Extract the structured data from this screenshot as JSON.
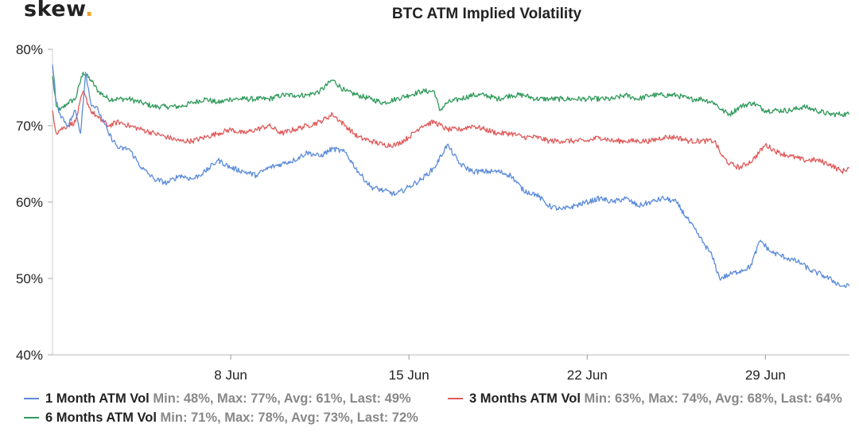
{
  "brand": {
    "name": "skew",
    "dot": "."
  },
  "chart_data": {
    "type": "line",
    "title": "BTC ATM Implied Volatility",
    "xlabel": "",
    "ylabel": "",
    "ylim": [
      40,
      80
    ],
    "xlim": [
      0,
      31.3
    ],
    "y_ticks": [
      40,
      50,
      60,
      70,
      80
    ],
    "y_tick_labels": [
      "40%",
      "50%",
      "60%",
      "70%",
      "80%"
    ],
    "x_ticks": [
      7,
      14,
      21,
      28
    ],
    "x_tick_labels": [
      "8 Jun",
      "15 Jun",
      "22 Jun",
      "29 Jun"
    ],
    "x_unit": "days since 1 Jun",
    "grid": false,
    "legend_position": "bottom",
    "series": [
      {
        "name": "1 Month ATM Vol",
        "color": "#5b8bd9",
        "stats": "Min: 48%, Max: 77%, Avg: 61%, Last: 49%",
        "x": [
          0,
          0.15,
          0.3,
          0.6,
          0.9,
          1.1,
          1.3,
          1.5,
          1.8,
          2.2,
          2.6,
          3.0,
          3.5,
          4.0,
          4.5,
          5.0,
          5.5,
          6.0,
          6.5,
          7.0,
          7.5,
          8.0,
          8.5,
          9.0,
          9.5,
          10.0,
          10.5,
          11.0,
          11.5,
          12.0,
          12.5,
          13.0,
          13.5,
          14.0,
          14.5,
          15.0,
          15.5,
          16.0,
          16.5,
          17.0,
          17.5,
          18.0,
          18.5,
          19.0,
          19.5,
          20.0,
          20.5,
          21.0,
          21.5,
          22.0,
          22.5,
          23.0,
          23.5,
          24.0,
          24.5,
          25.0,
          25.3,
          25.6,
          25.9,
          26.2,
          26.6,
          27.0,
          27.4,
          27.8,
          28.2,
          28.6,
          29.0,
          29.4,
          29.8,
          30.2,
          30.6,
          31.0,
          31.3
        ],
        "values": [
          78.0,
          73.0,
          71.5,
          70.0,
          72.0,
          69.0,
          77.0,
          73.0,
          72.0,
          69.0,
          67.0,
          67.0,
          64.5,
          63.0,
          62.5,
          63.5,
          63.0,
          64.0,
          65.5,
          64.5,
          64.0,
          63.5,
          64.5,
          65.0,
          65.5,
          66.5,
          66.0,
          67.0,
          66.5,
          64.0,
          62.0,
          61.5,
          61.0,
          62.0,
          63.0,
          64.5,
          67.5,
          65.0,
          64.0,
          64.0,
          64.0,
          63.5,
          61.5,
          61.0,
          59.5,
          59.0,
          59.5,
          60.0,
          60.5,
          60.0,
          60.5,
          59.5,
          60.0,
          60.5,
          60.0,
          57.5,
          56.0,
          54.5,
          53.0,
          50.0,
          50.5,
          51.0,
          51.5,
          55.0,
          53.5,
          53.0,
          52.5,
          52.0,
          51.0,
          50.5,
          49.8,
          49.0,
          49.0
        ]
      },
      {
        "name": "3 Months ATM Vol",
        "color": "#e05a5a",
        "stats": "Min: 63%, Max: 74%, Avg: 68%, Last: 64%",
        "x": [
          0,
          0.15,
          0.3,
          0.6,
          0.9,
          1.2,
          1.5,
          1.8,
          2.2,
          2.6,
          3.0,
          3.5,
          4.0,
          4.5,
          5.0,
          5.5,
          6.0,
          6.5,
          7.0,
          7.5,
          8.0,
          8.5,
          9.0,
          9.5,
          10.0,
          10.5,
          11.0,
          11.5,
          12.0,
          12.5,
          13.0,
          13.5,
          14.0,
          14.5,
          15.0,
          15.5,
          16.0,
          16.5,
          17.0,
          17.5,
          18.0,
          18.5,
          19.0,
          19.5,
          20.0,
          20.5,
          21.0,
          21.5,
          22.0,
          22.5,
          23.0,
          23.5,
          24.0,
          24.5,
          25.0,
          25.5,
          26.0,
          26.3,
          26.6,
          27.0,
          27.5,
          28.0,
          28.5,
          29.0,
          29.5,
          30.0,
          30.5,
          31.0,
          31.3
        ],
        "values": [
          72.0,
          69.0,
          69.5,
          70.0,
          70.5,
          74.5,
          72.0,
          71.0,
          70.0,
          70.5,
          70.0,
          69.5,
          69.0,
          68.5,
          68.0,
          68.0,
          68.5,
          69.0,
          69.5,
          69.0,
          69.5,
          70.0,
          69.0,
          69.5,
          70.0,
          70.5,
          71.5,
          70.0,
          68.5,
          68.0,
          67.5,
          67.5,
          68.5,
          70.0,
          70.5,
          69.5,
          69.5,
          70.0,
          69.5,
          69.0,
          69.0,
          68.5,
          68.5,
          68.0,
          68.0,
          68.0,
          68.0,
          68.5,
          68.0,
          68.0,
          68.0,
          68.0,
          68.5,
          68.5,
          68.0,
          68.0,
          68.0,
          66.0,
          65.0,
          64.5,
          65.5,
          67.5,
          66.5,
          66.0,
          65.5,
          65.5,
          65.0,
          64.0,
          64.5
        ]
      },
      {
        "name": "6 Months ATM Vol",
        "color": "#2f9a5a",
        "stats": "Min: 71%, Max: 78%, Avg: 73%, Last: 72%",
        "x": [
          0,
          0.15,
          0.3,
          0.6,
          0.9,
          1.2,
          1.5,
          1.8,
          2.2,
          2.6,
          3.0,
          3.5,
          4.0,
          4.5,
          5.0,
          5.5,
          6.0,
          6.5,
          7.0,
          7.5,
          8.0,
          8.5,
          9.0,
          9.5,
          10.0,
          10.5,
          11.0,
          11.5,
          12.0,
          12.5,
          13.0,
          13.5,
          14.0,
          14.5,
          15.0,
          15.2,
          15.5,
          16.0,
          16.5,
          17.0,
          17.5,
          18.0,
          18.5,
          19.0,
          19.5,
          20.0,
          20.5,
          21.0,
          21.5,
          22.0,
          22.5,
          23.0,
          23.5,
          24.0,
          24.5,
          25.0,
          25.5,
          26.0,
          26.3,
          26.6,
          27.0,
          27.5,
          28.0,
          28.5,
          29.0,
          29.5,
          30.0,
          30.5,
          31.0,
          31.3
        ],
        "values": [
          76.5,
          72.5,
          72.0,
          73.0,
          73.5,
          77.0,
          76.0,
          74.5,
          73.5,
          73.5,
          73.5,
          73.0,
          72.5,
          72.5,
          72.5,
          73.0,
          73.5,
          73.0,
          73.5,
          73.5,
          73.5,
          73.5,
          74.0,
          74.0,
          74.0,
          74.5,
          76.0,
          74.5,
          74.0,
          73.5,
          73.0,
          73.5,
          74.0,
          74.5,
          74.5,
          72.0,
          73.0,
          73.5,
          74.0,
          74.0,
          73.5,
          74.0,
          74.0,
          73.5,
          73.5,
          73.5,
          73.5,
          73.5,
          73.5,
          73.5,
          74.0,
          73.5,
          74.0,
          74.0,
          74.0,
          73.5,
          73.5,
          73.0,
          72.0,
          71.5,
          72.5,
          73.0,
          72.0,
          72.0,
          72.0,
          72.5,
          72.0,
          71.5,
          71.5,
          71.5
        ]
      }
    ]
  }
}
